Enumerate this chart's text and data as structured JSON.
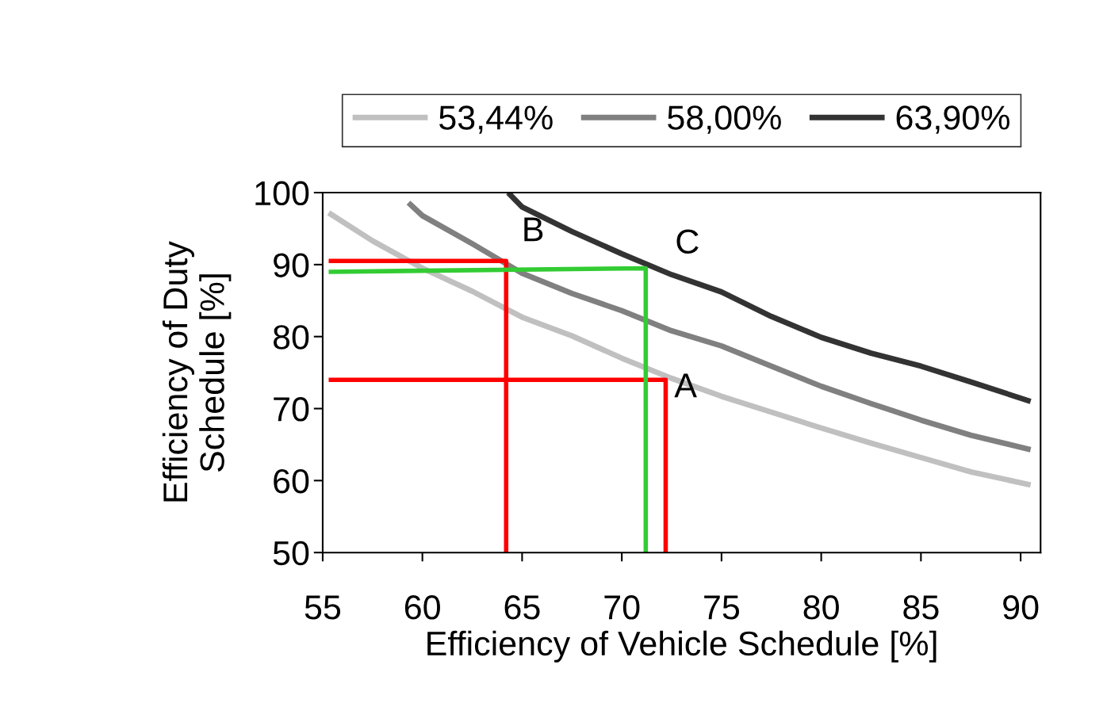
{
  "chart_data": {
    "type": "line",
    "xlabel": "Efficiency of Vehicle Schedule [%]",
    "ylabel": "Efficiency of Duty\nSchedule [%]",
    "xlim": [
      55,
      91
    ],
    "xticks": [
      55,
      60,
      65,
      70,
      75,
      80,
      85,
      90
    ],
    "ylim": [
      50,
      100
    ],
    "yticks": [
      50,
      60,
      70,
      80,
      90,
      100
    ],
    "grid": false,
    "legend": "top",
    "marker": "none",
    "line_style": "solid",
    "series": [
      {
        "name": "53,44%",
        "color": "#c0c0c0",
        "x": [
          55.3,
          57.5,
          60,
          62.5,
          65,
          67.5,
          70,
          72.5,
          75,
          77.5,
          80,
          82.5,
          85,
          87.5,
          90.5
        ],
        "values": [
          97.2,
          93.3,
          89.5,
          86.3,
          82.7,
          80.1,
          77.0,
          74.2,
          71.7,
          69.5,
          67.3,
          65.2,
          63.2,
          61.2,
          59.4
        ]
      },
      {
        "name": "58,00%",
        "color": "#808080",
        "x": [
          59.3,
          60,
          62.5,
          65,
          67.5,
          70,
          72.5,
          75,
          77.5,
          80,
          82.5,
          85,
          87.5,
          90.5
        ],
        "values": [
          98.6,
          96.8,
          92.9,
          88.8,
          86.0,
          83.6,
          80.8,
          78.7,
          75.9,
          73.1,
          70.7,
          68.4,
          66.3,
          64.3
        ]
      },
      {
        "name": "63,90%",
        "color": "#333333",
        "x": [
          64.3,
          65,
          67.5,
          70,
          72.5,
          75,
          77.5,
          80,
          82.5,
          85,
          87.5,
          90.5
        ],
        "values": [
          100,
          98.0,
          94.6,
          91.5,
          88.6,
          86.2,
          82.8,
          79.9,
          77.7,
          75.9,
          73.7,
          71.0
        ]
      },
      {
        "type": "line",
        "color": "#ff0000",
        "x": [
          55.3,
          64.2,
          64.2
        ],
        "values": [
          90.5,
          90.5,
          50
        ]
      },
      {
        "type": "line",
        "color": "#ff0000",
        "x": [
          55.3,
          72.2,
          72.2
        ],
        "values": [
          74,
          74,
          50
        ]
      },
      {
        "type": "line",
        "color": "#33cc33",
        "x": [
          55.3,
          71.2,
          71.2
        ],
        "values": [
          89,
          89.5,
          50
        ]
      }
    ],
    "annotations": [
      {
        "text": "A",
        "x": 73.2,
        "y": 72.8
      },
      "B",
      "C"
    ]
  }
}
